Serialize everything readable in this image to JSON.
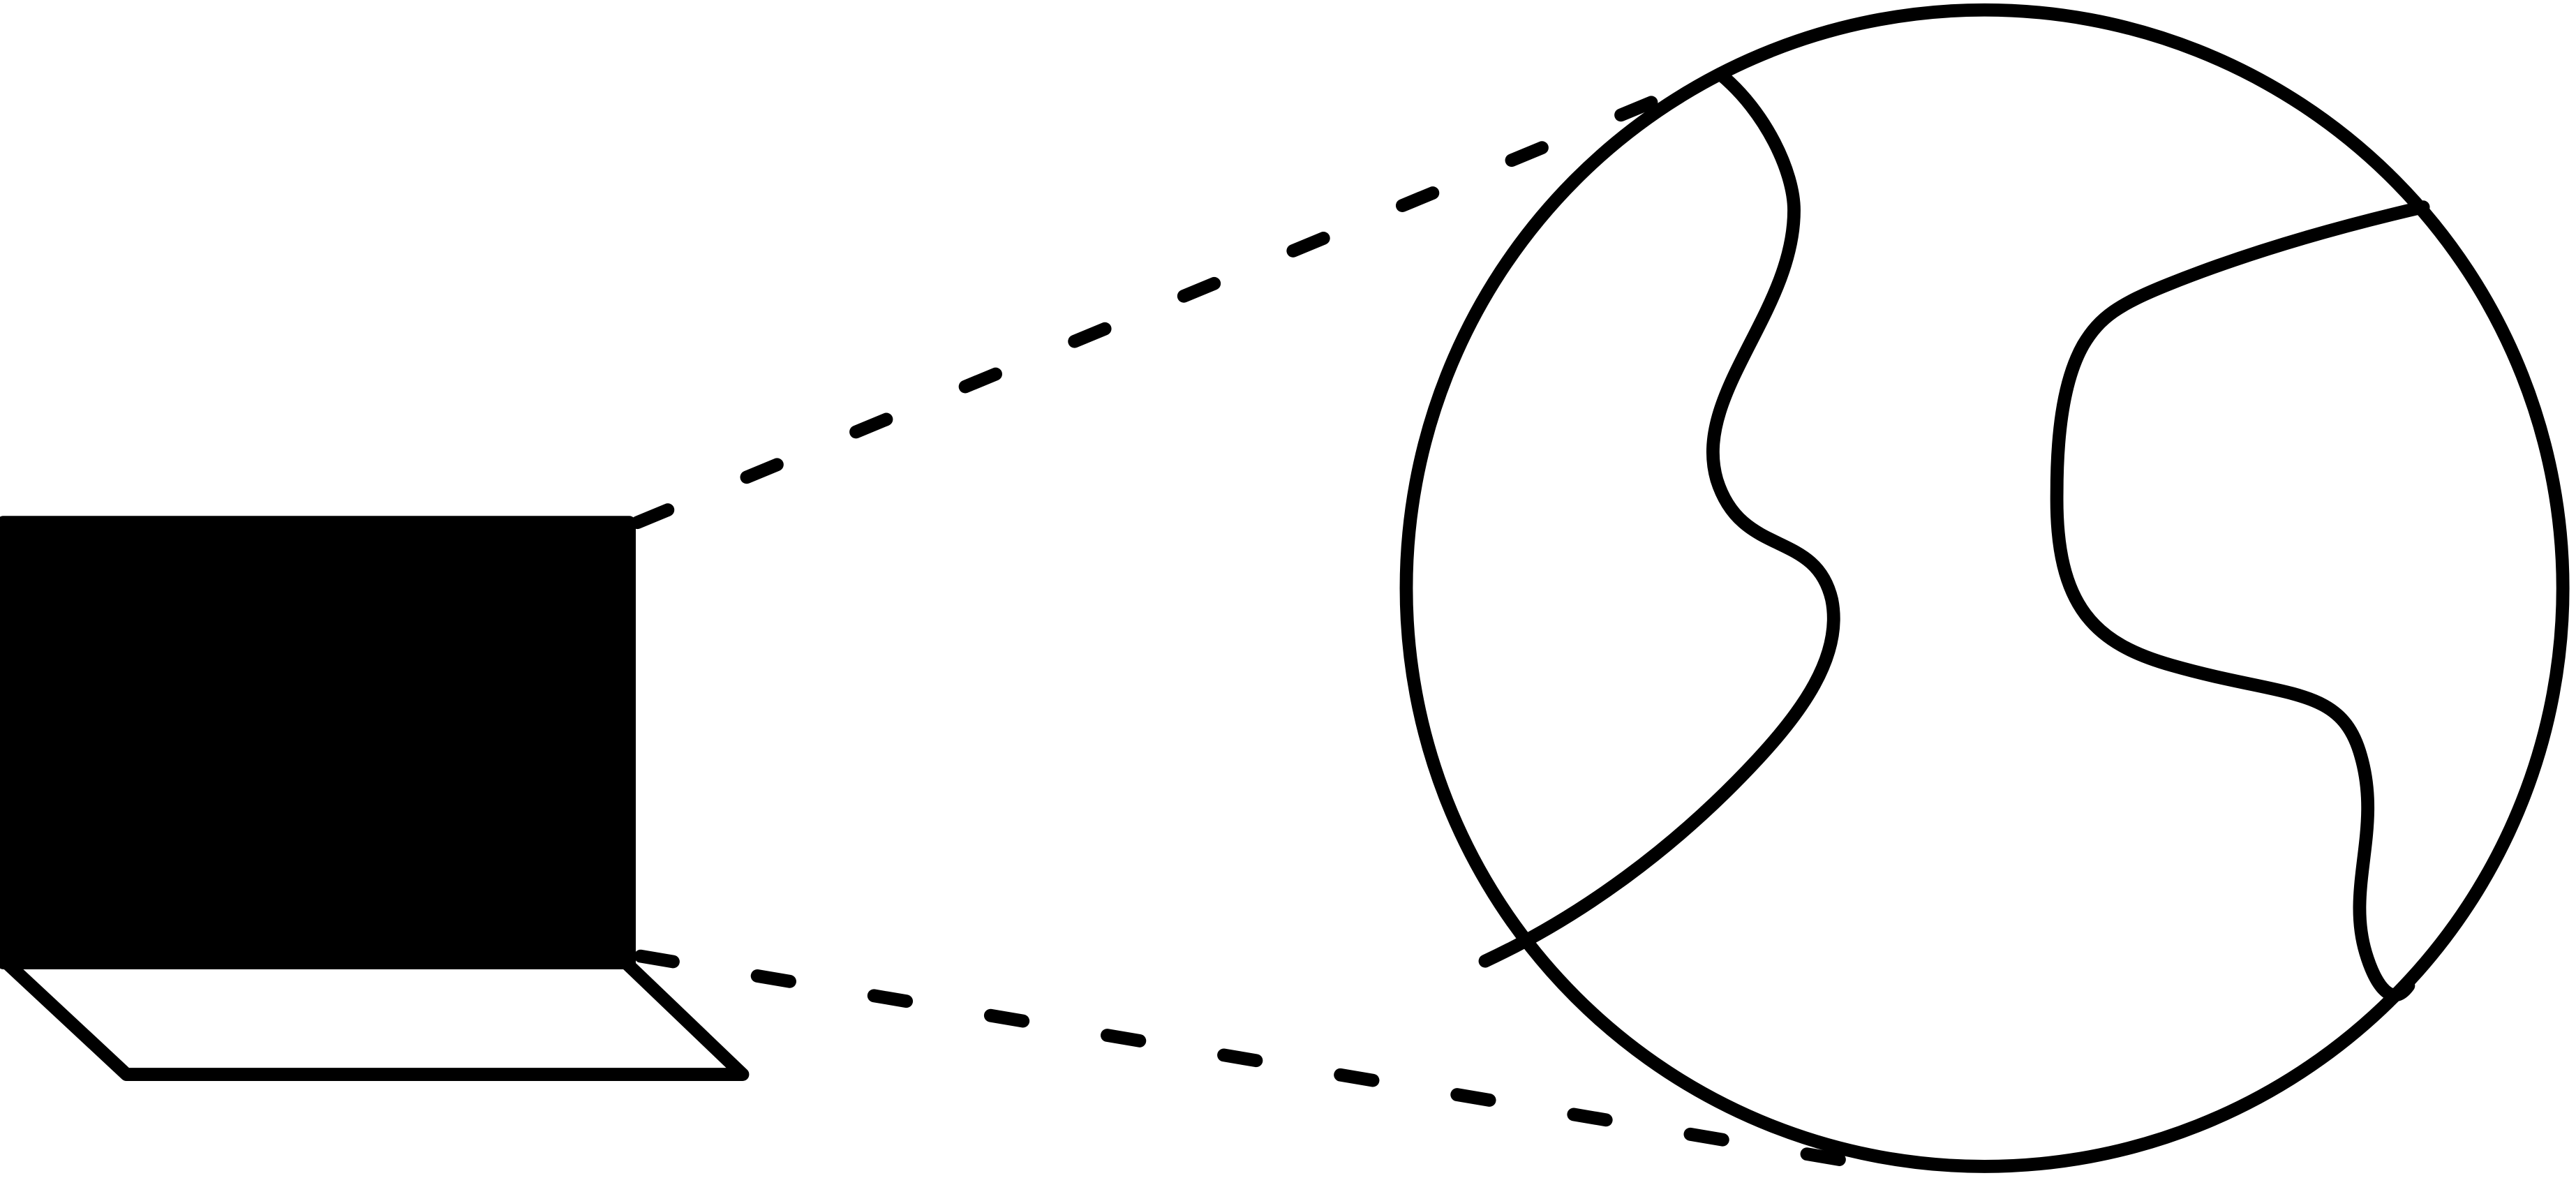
{
  "diagram": {
    "icons": [
      "laptop-icon",
      "globe-icon",
      "connection-dashed-lines"
    ],
    "colors": {
      "stroke": "#000000",
      "fill": "#000000",
      "background": "#ffffff"
    }
  }
}
